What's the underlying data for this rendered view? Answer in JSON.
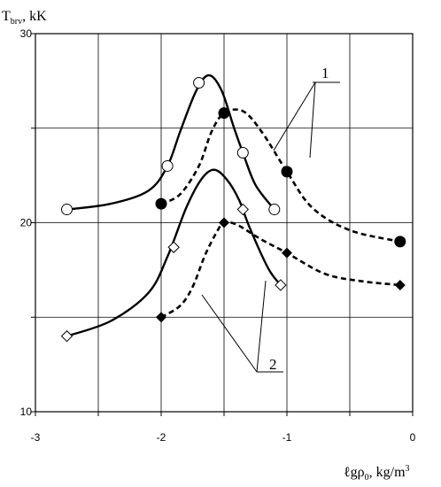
{
  "chart_data": {
    "type": "line",
    "title": "",
    "ylabel": {
      "main": "T",
      "sub": "brv",
      "unit": ", kK"
    },
    "xlabel": {
      "prefix": "ℓgρ",
      "sub": "0",
      "unit": ", kg/m",
      "sup": "3"
    },
    "xlim": [
      -3,
      0
    ],
    "ylim": [
      10,
      30
    ],
    "grid": true,
    "x_ticks": [
      -3,
      -2.5,
      -2,
      -1.5,
      -1,
      -0.5,
      0
    ],
    "x_tick_labels": [
      "-3",
      "",
      "-2",
      "",
      "-1",
      "",
      "0"
    ],
    "y_ticks": [
      10,
      15,
      20,
      25,
      30
    ],
    "y_tick_labels": [
      "10",
      "",
      "20",
      "",
      "30"
    ],
    "callouts": [
      "1",
      "2"
    ],
    "series": [
      {
        "marker": "circle-open",
        "line": "solid",
        "points": [
          [
            -2.75,
            20.7
          ],
          [
            -1.95,
            23.0
          ],
          [
            -1.7,
            27.4
          ],
          [
            -1.35,
            23.7
          ],
          [
            -1.1,
            20.7
          ]
        ],
        "curve": [
          [
            -2.75,
            20.7
          ],
          [
            -2.4,
            21.0
          ],
          [
            -2.1,
            21.7
          ],
          [
            -1.95,
            23.0
          ],
          [
            -1.85,
            24.8
          ],
          [
            -1.72,
            27.0
          ],
          [
            -1.62,
            27.8
          ],
          [
            -1.52,
            27.0
          ],
          [
            -1.42,
            25.0
          ],
          [
            -1.35,
            23.7
          ],
          [
            -1.25,
            22.0
          ],
          [
            -1.1,
            20.7
          ]
        ]
      },
      {
        "marker": "circle-filled",
        "line": "dashed",
        "points": [
          [
            -2.0,
            21.0
          ],
          [
            -1.5,
            25.8
          ],
          [
            -1.0,
            22.7
          ],
          [
            -0.1,
            19.0
          ]
        ],
        "curve": [
          [
            -2.0,
            21.0
          ],
          [
            -1.85,
            21.5
          ],
          [
            -1.7,
            23.0
          ],
          [
            -1.6,
            24.8
          ],
          [
            -1.5,
            25.8
          ],
          [
            -1.35,
            25.9
          ],
          [
            -1.2,
            24.8
          ],
          [
            -1.0,
            22.7
          ],
          [
            -0.8,
            20.8
          ],
          [
            -0.5,
            19.6
          ],
          [
            -0.1,
            19.0
          ]
        ]
      },
      {
        "marker": "diamond-open",
        "line": "solid",
        "points": [
          [
            -2.75,
            14.0
          ],
          [
            -1.9,
            18.7
          ],
          [
            -1.35,
            20.7
          ],
          [
            -1.05,
            16.7
          ]
        ],
        "curve": [
          [
            -2.75,
            14.0
          ],
          [
            -2.4,
            14.8
          ],
          [
            -2.1,
            16.3
          ],
          [
            -1.95,
            18.2
          ],
          [
            -1.8,
            20.8
          ],
          [
            -1.68,
            22.3
          ],
          [
            -1.58,
            22.8
          ],
          [
            -1.48,
            22.3
          ],
          [
            -1.38,
            21.2
          ],
          [
            -1.3,
            19.8
          ],
          [
            -1.15,
            17.6
          ],
          [
            -1.05,
            16.7
          ]
        ]
      },
      {
        "marker": "diamond-filled",
        "line": "dashed",
        "points": [
          [
            -2.0,
            15.0
          ],
          [
            -1.5,
            20.0
          ],
          [
            -1.0,
            18.4
          ],
          [
            -0.1,
            16.7
          ]
        ],
        "curve": [
          [
            -2.0,
            15.0
          ],
          [
            -1.85,
            15.6
          ],
          [
            -1.75,
            16.6
          ],
          [
            -1.65,
            18.3
          ],
          [
            -1.55,
            19.6
          ],
          [
            -1.5,
            20.0
          ],
          [
            -1.4,
            19.9
          ],
          [
            -1.2,
            19.1
          ],
          [
            -1.0,
            18.4
          ],
          [
            -0.7,
            17.3
          ],
          [
            -0.4,
            16.9
          ],
          [
            -0.1,
            16.7
          ]
        ]
      }
    ]
  }
}
